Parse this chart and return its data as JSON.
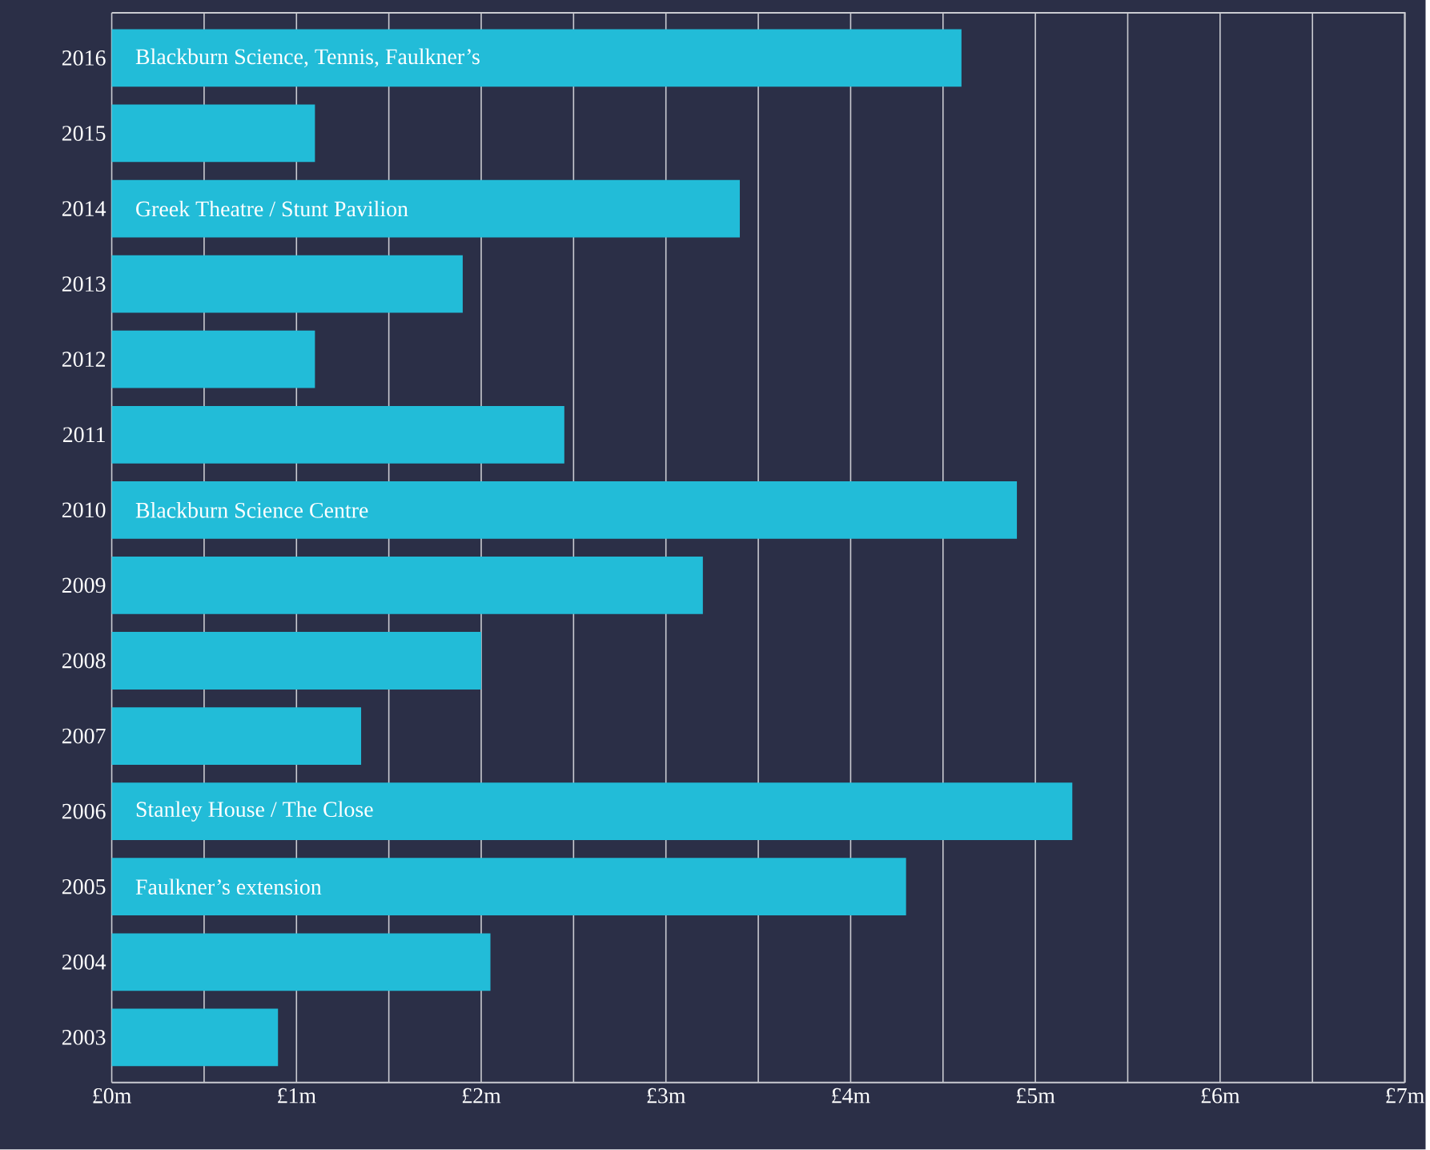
{
  "chart_data": {
    "type": "bar",
    "orientation": "horizontal",
    "categories": [
      "2016",
      "2015",
      "2014",
      "2013",
      "2012",
      "2011",
      "2010",
      "2009",
      "2008",
      "2007",
      "2006",
      "2005",
      "2004",
      "2003"
    ],
    "values": [
      4.6,
      1.1,
      3.4,
      1.9,
      1.1,
      2.45,
      4.9,
      3.2,
      2.0,
      1.35,
      5.2,
      4.3,
      2.05,
      0.9
    ],
    "color": "#22bcd8",
    "xlim": [
      0,
      7
    ],
    "xticks": [
      {
        "value": 0,
        "label": "£0m"
      },
      {
        "value": 0.5,
        "label": null
      },
      {
        "value": 1,
        "label": "£1m"
      },
      {
        "value": 1.5,
        "label": null
      },
      {
        "value": 2,
        "label": "£2m"
      },
      {
        "value": 2.5,
        "label": null
      },
      {
        "value": 3,
        "label": "£3m"
      },
      {
        "value": 3.5,
        "label": null
      },
      {
        "value": 4,
        "label": "£4m"
      },
      {
        "value": 4.5,
        "label": null
      },
      {
        "value": 5,
        "label": "£5m"
      },
      {
        "value": 5.5,
        "label": null
      },
      {
        "value": 6,
        "label": "£6m"
      },
      {
        "value": 6.5,
        "label": null
      },
      {
        "value": 7,
        "label": "£7m"
      }
    ],
    "grid": "x",
    "annotations": [
      "Blackburn Science, Tennis, Faulkner’s",
      "Greek Theatre / Stunt Pavilion",
      "Blackburn Science Centre",
      "Stanley House / The Close",
      "Faulkner’s extension"
    ]
  }
}
